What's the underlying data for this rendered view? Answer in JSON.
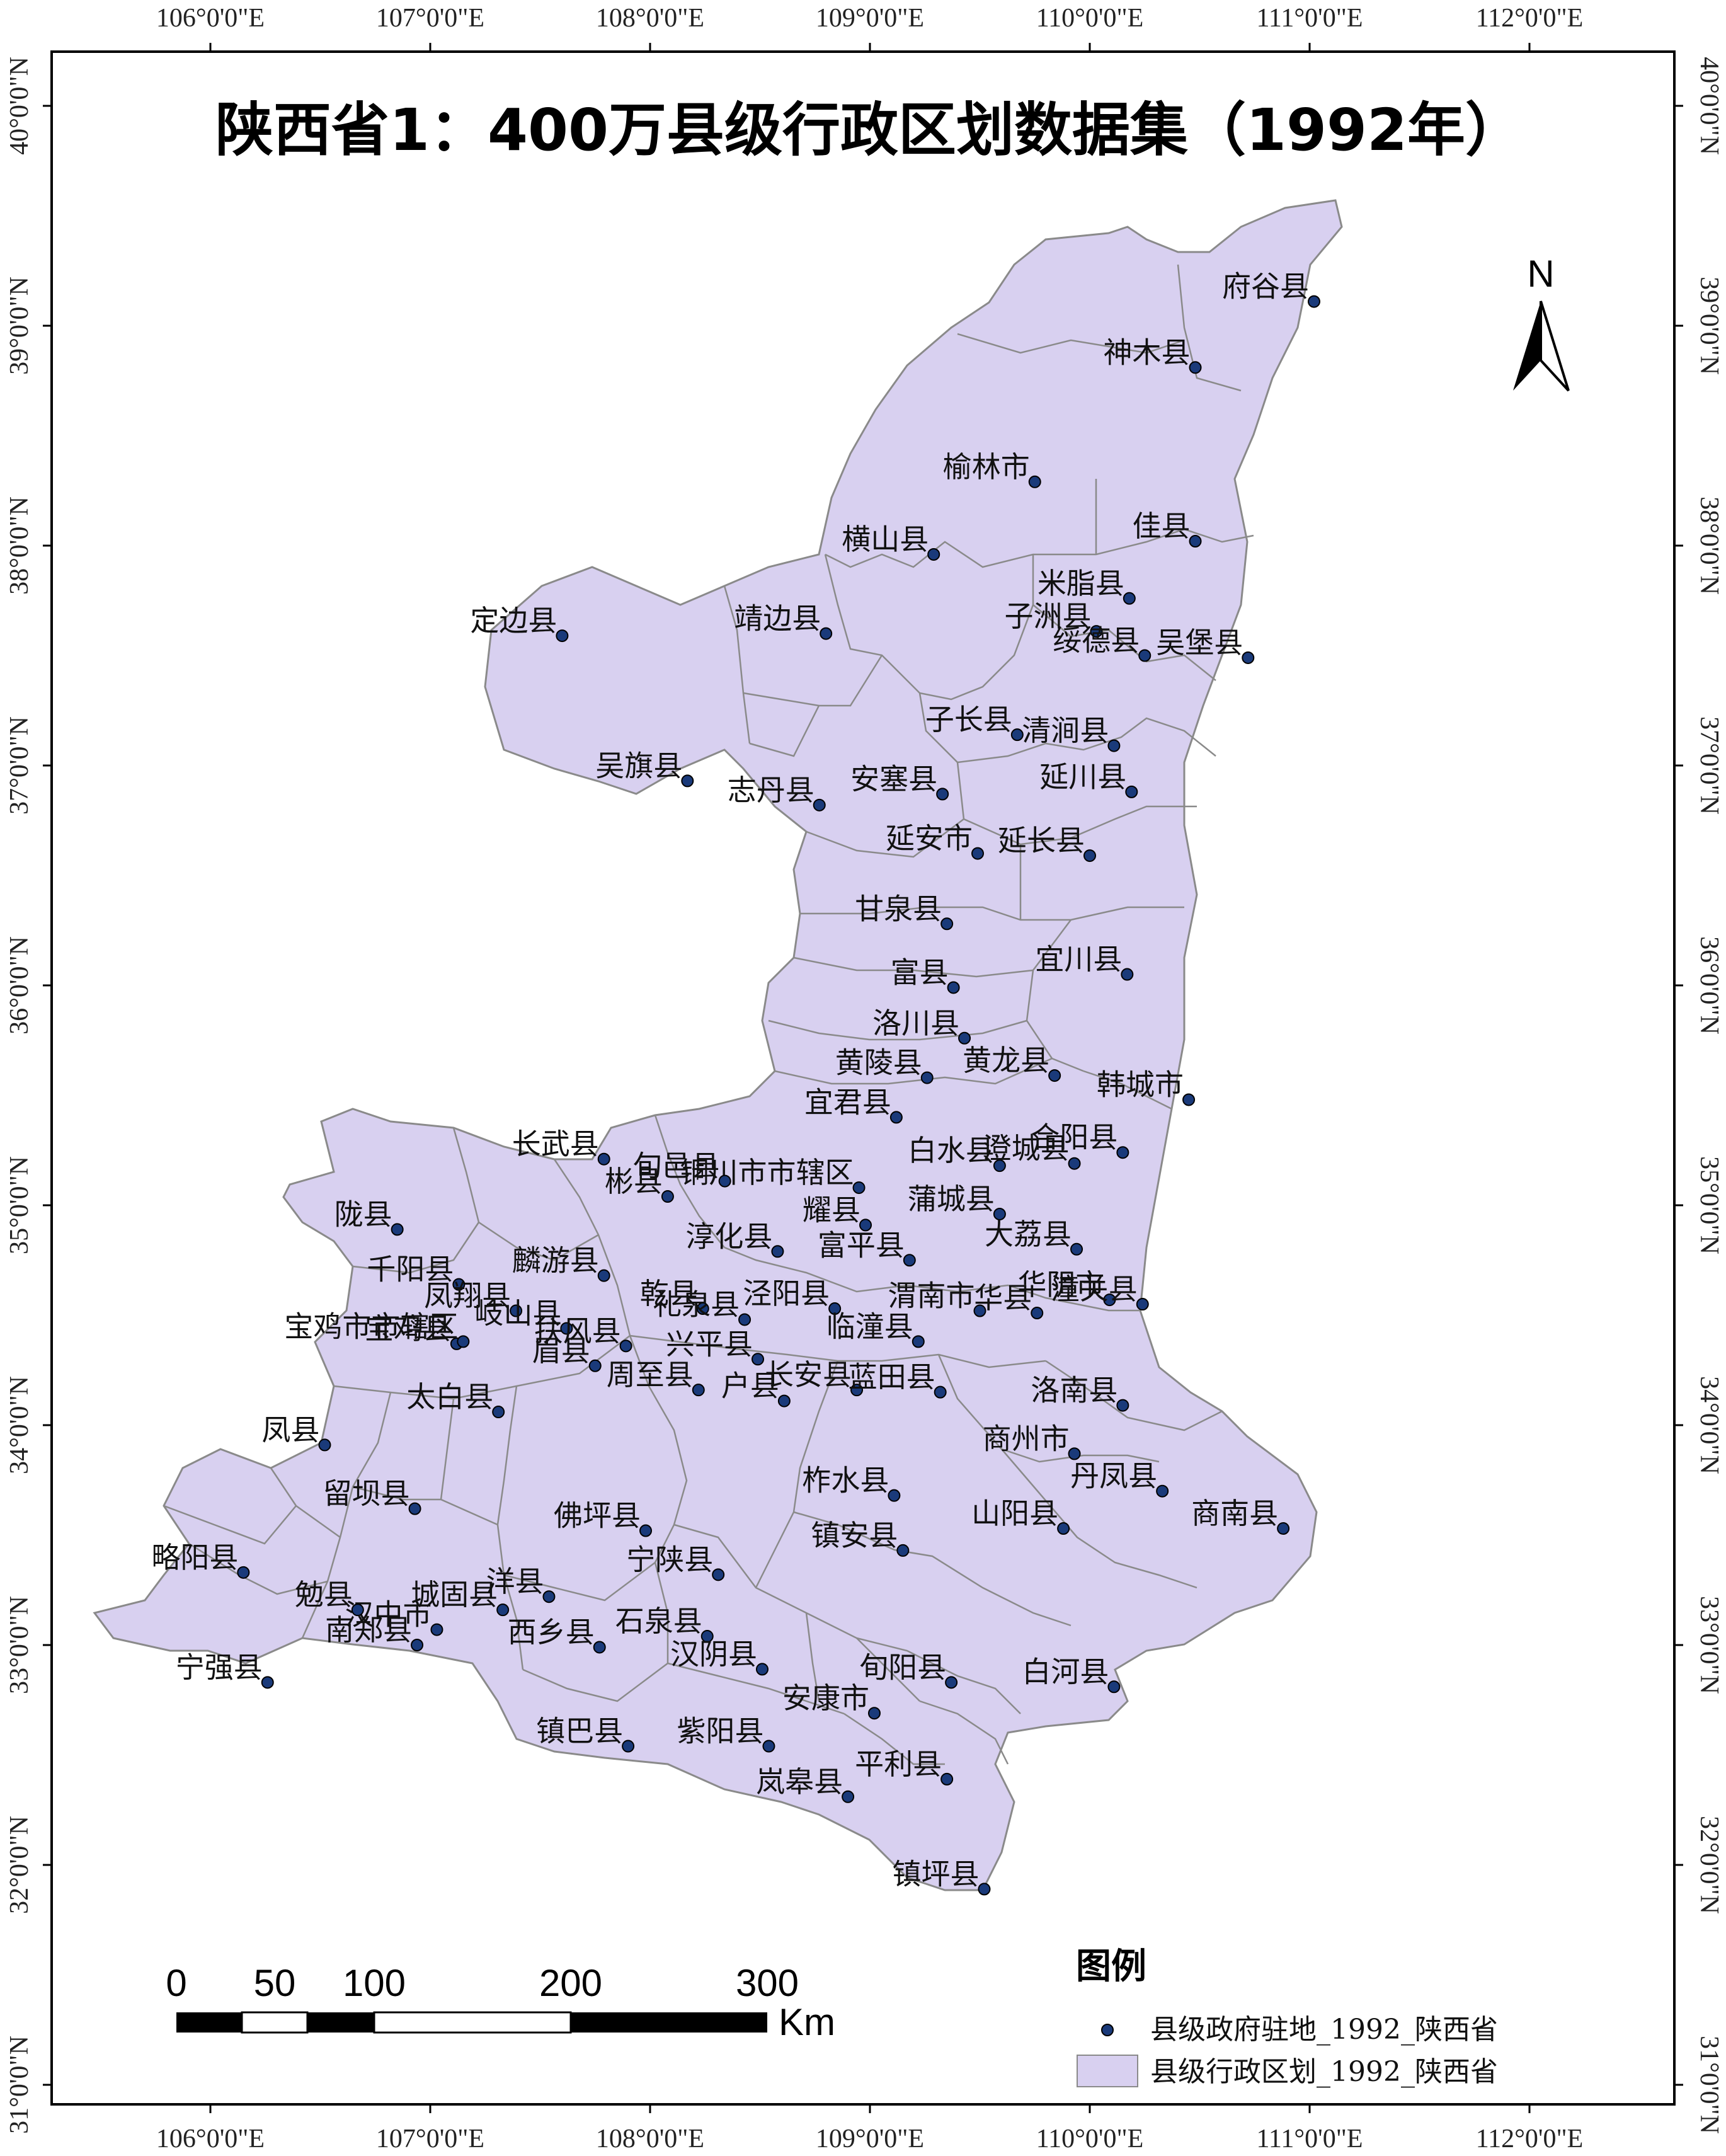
{
  "title": "陕西省1：400万县级行政区划数据集（1992年）",
  "colors": {
    "region_fill": "#d8d0f0",
    "region_stroke": "#8a8a8a",
    "point_fill": "#1a3a7a",
    "frame": "#000000",
    "background": "#ffffff"
  },
  "lon_ticks": [
    "106°0'0\"E",
    "107°0'0\"E",
    "108°0'0\"E",
    "109°0'0\"E",
    "110°0'0\"E",
    "111°0'0\"E",
    "112°0'0\"E"
  ],
  "lat_ticks": [
    "40°0'0\"N",
    "39°0'0\"N",
    "38°0'0\"N",
    "37°0'0\"N",
    "36°0'0\"N",
    "35°0'0\"N",
    "34°0'0\"N",
    "33°0'0\"N",
    "32°0'0\"N",
    "31°0'0\"N"
  ],
  "lon_values": [
    106,
    107,
    108,
    109,
    110,
    111,
    112
  ],
  "lat_values": [
    40,
    39,
    38,
    37,
    36,
    35,
    34,
    33,
    32,
    31
  ],
  "counties": [
    {
      "name": "府谷县",
      "lon": 111.02,
      "lat": 39.11
    },
    {
      "name": "神木县",
      "lon": 110.48,
      "lat": 38.81
    },
    {
      "name": "榆林市",
      "lon": 109.75,
      "lat": 38.29
    },
    {
      "name": "佳县",
      "lon": 110.48,
      "lat": 38.02
    },
    {
      "name": "横山县",
      "lon": 109.29,
      "lat": 37.96
    },
    {
      "name": "米脂县",
      "lon": 110.18,
      "lat": 37.76
    },
    {
      "name": "定边县",
      "lon": 107.6,
      "lat": 37.59
    },
    {
      "name": "靖边县",
      "lon": 108.8,
      "lat": 37.6
    },
    {
      "name": "子洲县",
      "lon": 110.03,
      "lat": 37.61
    },
    {
      "name": "绥德县",
      "lon": 110.25,
      "lat": 37.5
    },
    {
      "name": "吴堡县",
      "lon": 110.72,
      "lat": 37.49
    },
    {
      "name": "子长县",
      "lon": 109.67,
      "lat": 37.14
    },
    {
      "name": "清涧县",
      "lon": 110.11,
      "lat": 37.09
    },
    {
      "name": "吴旗县",
      "lon": 108.17,
      "lat": 36.93
    },
    {
      "name": "安塞县",
      "lon": 109.33,
      "lat": 36.87
    },
    {
      "name": "延川县",
      "lon": 110.19,
      "lat": 36.88
    },
    {
      "name": "志丹县",
      "lon": 108.77,
      "lat": 36.82
    },
    {
      "name": "延安市",
      "lon": 109.49,
      "lat": 36.6
    },
    {
      "name": "延长县",
      "lon": 110.0,
      "lat": 36.59
    },
    {
      "name": "甘泉县",
      "lon": 109.35,
      "lat": 36.28
    },
    {
      "name": "宜川县",
      "lon": 110.17,
      "lat": 36.05
    },
    {
      "name": "富县",
      "lon": 109.38,
      "lat": 35.99
    },
    {
      "name": "洛川县",
      "lon": 109.43,
      "lat": 35.76
    },
    {
      "name": "黄陵县",
      "lon": 109.26,
      "lat": 35.58
    },
    {
      "name": "黄龙县",
      "lon": 109.84,
      "lat": 35.59
    },
    {
      "name": "韩城市",
      "lon": 110.45,
      "lat": 35.48
    },
    {
      "name": "宜君县",
      "lon": 109.12,
      "lat": 35.4
    },
    {
      "name": "铜川市市辖区",
      "lon": 108.95,
      "lat": 35.08
    },
    {
      "name": "长武县",
      "lon": 107.79,
      "lat": 35.21
    },
    {
      "name": "旬邑县",
      "lon": 108.34,
      "lat": 35.11
    },
    {
      "name": "白水县",
      "lon": 109.59,
      "lat": 35.18
    },
    {
      "name": "澄城县",
      "lon": 109.93,
      "lat": 35.19
    },
    {
      "name": "合阳县",
      "lon": 110.15,
      "lat": 35.24
    },
    {
      "name": "彬县",
      "lon": 108.08,
      "lat": 35.04
    },
    {
      "name": "耀县",
      "lon": 108.98,
      "lat": 34.91
    },
    {
      "name": "蒲城县",
      "lon": 109.59,
      "lat": 34.96
    },
    {
      "name": "陇县",
      "lon": 106.85,
      "lat": 34.89
    },
    {
      "name": "淳化县",
      "lon": 108.58,
      "lat": 34.79
    },
    {
      "name": "富平县",
      "lon": 109.18,
      "lat": 34.75
    },
    {
      "name": "大荔县",
      "lon": 109.94,
      "lat": 34.8
    },
    {
      "name": "千阳县",
      "lon": 107.13,
      "lat": 34.64
    },
    {
      "name": "麟游县",
      "lon": 107.79,
      "lat": 34.68
    },
    {
      "name": "凤翔县",
      "lon": 107.39,
      "lat": 34.52
    },
    {
      "name": "乾县",
      "lon": 108.24,
      "lat": 34.53
    },
    {
      "name": "礼泉县",
      "lon": 108.43,
      "lat": 34.48
    },
    {
      "name": "泾阳县",
      "lon": 108.84,
      "lat": 34.53
    },
    {
      "name": "渭南市",
      "lon": 109.5,
      "lat": 34.52
    },
    {
      "name": "华阴市",
      "lon": 110.09,
      "lat": 34.57
    },
    {
      "name": "潼关县",
      "lon": 110.24,
      "lat": 34.55
    },
    {
      "name": "宝鸡县",
      "lon": 107.12,
      "lat": 34.37
    },
    {
      "name": "岐山县",
      "lon": 107.62,
      "lat": 34.44
    },
    {
      "name": "扶风县",
      "lon": 107.89,
      "lat": 34.36
    },
    {
      "name": "兴平县",
      "lon": 108.49,
      "lat": 34.3
    },
    {
      "name": "临潼县",
      "lon": 109.22,
      "lat": 34.38
    },
    {
      "name": "华县",
      "lon": 109.76,
      "lat": 34.51
    },
    {
      "name": "宝鸡市市辖区",
      "lon": 107.15,
      "lat": 34.38
    },
    {
      "name": "眉县",
      "lon": 107.75,
      "lat": 34.27
    },
    {
      "name": "周至县",
      "lon": 108.22,
      "lat": 34.16
    },
    {
      "name": "户县",
      "lon": 108.61,
      "lat": 34.11
    },
    {
      "name": "长安县",
      "lon": 108.94,
      "lat": 34.16
    },
    {
      "name": "蓝田县",
      "lon": 109.32,
      "lat": 34.15
    },
    {
      "name": "洛南县",
      "lon": 110.15,
      "lat": 34.09
    },
    {
      "name": "凤县",
      "lon": 106.52,
      "lat": 33.91
    },
    {
      "name": "太白县",
      "lon": 107.31,
      "lat": 34.06
    },
    {
      "name": "商州市",
      "lon": 109.93,
      "lat": 33.87
    },
    {
      "name": "柞水县",
      "lon": 109.11,
      "lat": 33.68
    },
    {
      "name": "丹凤县",
      "lon": 110.33,
      "lat": 33.7
    },
    {
      "name": "留坝县",
      "lon": 106.93,
      "lat": 33.62
    },
    {
      "name": "佛坪县",
      "lon": 107.98,
      "lat": 33.52
    },
    {
      "name": "宁陕县",
      "lon": 108.31,
      "lat": 33.32
    },
    {
      "name": "山阳县",
      "lon": 109.88,
      "lat": 33.53
    },
    {
      "name": "商南县",
      "lon": 110.88,
      "lat": 33.53
    },
    {
      "name": "镇安县",
      "lon": 109.15,
      "lat": 33.43
    },
    {
      "name": "略阳县",
      "lon": 106.15,
      "lat": 33.33
    },
    {
      "name": "汉中市",
      "lon": 107.03,
      "lat": 33.07
    },
    {
      "name": "洋县",
      "lon": 107.54,
      "lat": 33.22
    },
    {
      "name": "勉县",
      "lon": 106.67,
      "lat": 33.16
    },
    {
      "name": "城固县",
      "lon": 107.33,
      "lat": 33.16
    },
    {
      "name": "石泉县",
      "lon": 108.26,
      "lat": 33.04
    },
    {
      "name": "宁强县",
      "lon": 106.26,
      "lat": 32.83
    },
    {
      "name": "南郑县",
      "lon": 106.94,
      "lat": 33.0
    },
    {
      "name": "西乡县",
      "lon": 107.77,
      "lat": 32.99
    },
    {
      "name": "汉阴县",
      "lon": 108.51,
      "lat": 32.89
    },
    {
      "name": "旬阳县",
      "lon": 109.37,
      "lat": 32.83
    },
    {
      "name": "白河县",
      "lon": 110.11,
      "lat": 32.81
    },
    {
      "name": "安康市",
      "lon": 109.02,
      "lat": 32.69
    },
    {
      "name": "镇巴县",
      "lon": 107.9,
      "lat": 32.54
    },
    {
      "name": "紫阳县",
      "lon": 108.54,
      "lat": 32.54
    },
    {
      "name": "岚皋县",
      "lon": 108.9,
      "lat": 32.31
    },
    {
      "name": "平利县",
      "lon": 109.35,
      "lat": 32.39
    },
    {
      "name": "镇坪县",
      "lon": 109.52,
      "lat": 31.89
    }
  ],
  "north_arrow": {
    "label": "N"
  },
  "scale_bar": {
    "labels": [
      "0",
      "50",
      "100",
      "200",
      "300"
    ],
    "unit": "Km"
  },
  "legend": {
    "title": "图例",
    "items": [
      {
        "type": "point",
        "label": "县级政府驻地_1992_陕西省"
      },
      {
        "type": "polygon",
        "label": "县级行政区划_1992_陕西省"
      }
    ]
  }
}
